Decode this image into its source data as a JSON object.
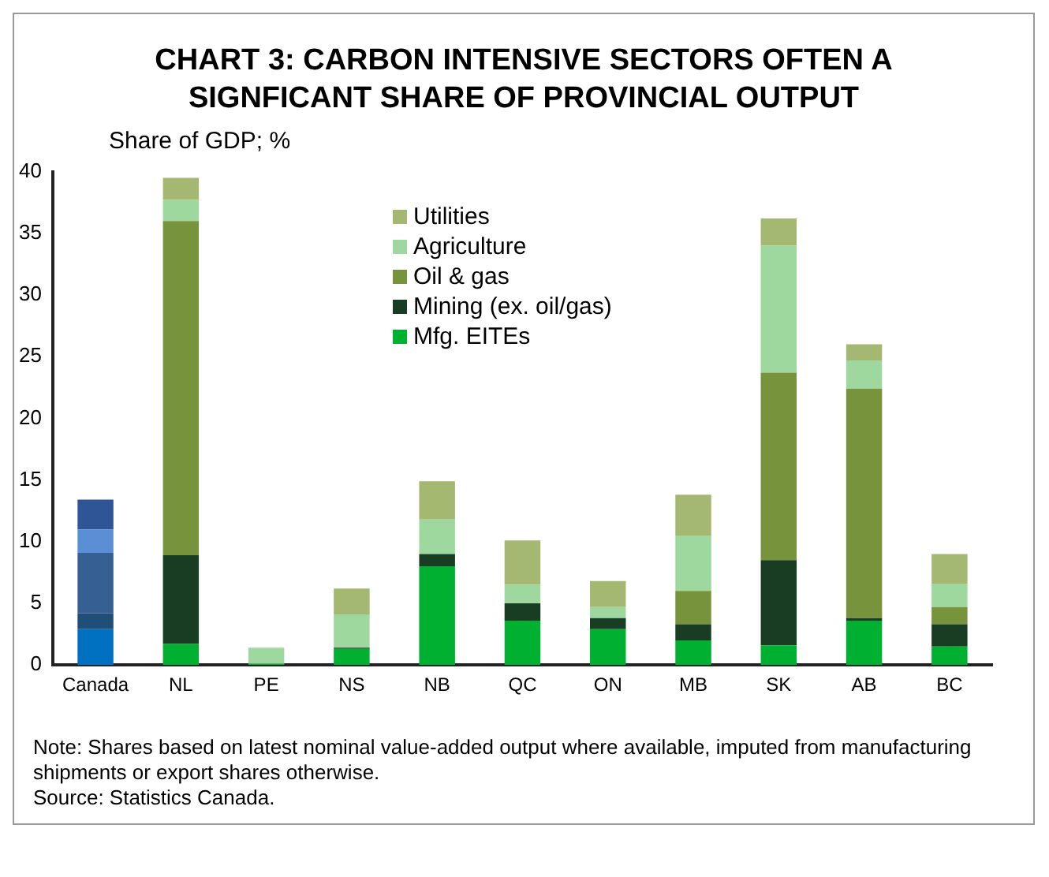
{
  "chart_data": {
    "type": "bar",
    "title": "CHART 3: CARBON INTENSIVE SECTORS OFTEN A SIGNFICANT SHARE OF PROVINCIAL OUTPUT",
    "ylabel": "Share of GDP; %",
    "categories": [
      "Canada",
      "NL",
      "PE",
      "NS",
      "NB",
      "QC",
      "ON",
      "MB",
      "SK",
      "AB",
      "BC"
    ],
    "stacked": true,
    "ylim": [
      0,
      40
    ],
    "yticks": [
      0,
      5,
      10,
      15,
      20,
      25,
      30,
      35,
      40
    ],
    "grid": false,
    "legend": "top",
    "series": [
      {
        "name": "Mfg. EITEs",
        "color": "#00b030",
        "colors": [
          "#0070c0",
          "#00b030",
          "#00b030",
          "#00b030",
          "#00b030",
          "#00b030",
          "#00b030",
          "#00b030",
          "#00b030",
          "#00b030",
          "#00b030"
        ],
        "values": [
          2.9,
          1.7,
          0.1,
          1.3,
          8.0,
          3.6,
          2.9,
          2.0,
          1.6,
          3.6,
          1.5
        ]
      },
      {
        "name": "Mining (ex. oil/gas)",
        "color": "#183d22",
        "colors": [
          "#1f4e79",
          "#183d22",
          "#183d22",
          "#183d22",
          "#183d22",
          "#183d22",
          "#183d22",
          "#183d22",
          "#183d22",
          "#183d22",
          "#183d22"
        ],
        "values": [
          1.3,
          7.2,
          0,
          0.1,
          1.0,
          1.4,
          0.9,
          1.3,
          6.9,
          0.2,
          1.8
        ]
      },
      {
        "name": "Oil & gas",
        "color": "#77933c",
        "colors": [
          "#376092",
          "#77933c",
          "#77933c",
          "#77933c",
          "#77933c",
          "#77933c",
          "#77933c",
          "#77933c",
          "#77933c",
          "#77933c",
          "#77933c"
        ],
        "values": [
          4.9,
          27.1,
          0,
          0,
          0,
          0,
          0,
          2.7,
          15.2,
          18.6,
          1.4
        ]
      },
      {
        "name": "Agriculture",
        "color": "#9fd89f",
        "colors": [
          "#5b8fd5",
          "#9fd89f",
          "#9fd89f",
          "#9fd89f",
          "#9fd89f",
          "#9fd89f",
          "#9fd89f",
          "#9fd89f",
          "#9fd89f",
          "#9fd89f",
          "#9fd89f"
        ],
        "values": [
          1.9,
          1.7,
          1.3,
          2.7,
          2.8,
          1.5,
          0.9,
          4.5,
          10.3,
          2.3,
          1.9
        ]
      },
      {
        "name": "Utilities",
        "color": "#a5b872",
        "colors": [
          "#2f5597",
          "#a5b872",
          "#a5b872",
          "#a5b872",
          "#a5b872",
          "#a5b872",
          "#a5b872",
          "#a5b872",
          "#a5b872",
          "#a5b872",
          "#a5b872"
        ],
        "values": [
          2.4,
          1.8,
          0,
          2.1,
          3.1,
          3.6,
          2.1,
          3.3,
          2.2,
          1.3,
          2.4
        ]
      }
    ],
    "annotations": [
      "Note: Shares based on latest nominal value-added output where available, imputed from manufacturing shipments or export shares otherwise.",
      "Source: Statistics Canada."
    ]
  }
}
